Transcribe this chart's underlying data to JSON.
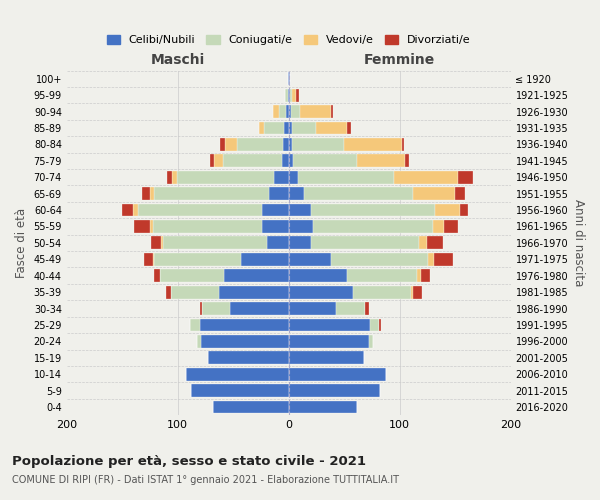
{
  "age_groups": [
    "0-4",
    "5-9",
    "10-14",
    "15-19",
    "20-24",
    "25-29",
    "30-34",
    "35-39",
    "40-44",
    "45-49",
    "50-54",
    "55-59",
    "60-64",
    "65-69",
    "70-74",
    "75-79",
    "80-84",
    "85-89",
    "90-94",
    "95-99",
    "100+"
  ],
  "birth_years": [
    "2016-2020",
    "2011-2015",
    "2006-2010",
    "2001-2005",
    "1996-2000",
    "1991-1995",
    "1986-1990",
    "1981-1985",
    "1976-1980",
    "1971-1975",
    "1966-1970",
    "1961-1965",
    "1956-1960",
    "1951-1955",
    "1946-1950",
    "1941-1945",
    "1936-1940",
    "1931-1935",
    "1926-1930",
    "1921-1925",
    "≤ 1920"
  ],
  "maschi": {
    "celibi": [
      68,
      88,
      93,
      73,
      79,
      80,
      53,
      63,
      58,
      43,
      20,
      24,
      24,
      18,
      13,
      6,
      5,
      4,
      2,
      1,
      1
    ],
    "coniugati": [
      0,
      0,
      0,
      0,
      4,
      9,
      25,
      43,
      58,
      78,
      93,
      98,
      112,
      103,
      88,
      53,
      42,
      18,
      7,
      2,
      0
    ],
    "vedovi": [
      0,
      0,
      0,
      0,
      0,
      0,
      0,
      0,
      0,
      1,
      2,
      3,
      4,
      4,
      4,
      8,
      10,
      5,
      5,
      0,
      0
    ],
    "divorziati": [
      0,
      0,
      0,
      0,
      0,
      0,
      2,
      5,
      5,
      8,
      9,
      14,
      10,
      7,
      5,
      4,
      5,
      0,
      0,
      0,
      0
    ]
  },
  "femmine": {
    "nubili": [
      62,
      82,
      88,
      68,
      72,
      73,
      43,
      58,
      53,
      38,
      20,
      22,
      20,
      14,
      8,
      4,
      3,
      3,
      2,
      1,
      1
    ],
    "coniugate": [
      0,
      0,
      0,
      0,
      4,
      8,
      26,
      52,
      63,
      88,
      97,
      108,
      112,
      98,
      87,
      58,
      47,
      22,
      8,
      2,
      0
    ],
    "vedove": [
      0,
      0,
      0,
      0,
      0,
      0,
      0,
      2,
      3,
      5,
      8,
      10,
      22,
      38,
      58,
      43,
      52,
      28,
      28,
      4,
      0
    ],
    "divorziate": [
      0,
      0,
      0,
      0,
      0,
      2,
      3,
      8,
      8,
      17,
      14,
      13,
      8,
      9,
      13,
      3,
      2,
      3,
      2,
      2,
      0
    ]
  },
  "colors": {
    "celibi": "#4472C4",
    "coniugati": "#c5d9b8",
    "vedovi": "#f5c87a",
    "divorziati": "#c0392b"
  },
  "xlim": 200,
  "title": "Popolazione per età, sesso e stato civile - 2021",
  "subtitle": "COMUNE DI RIPI (FR) - Dati ISTAT 1° gennaio 2021 - Elaborazione TUTTITALIA.IT",
  "ylabel_left": "Fasce di età",
  "ylabel_right": "Anni di nascita",
  "xlabel_maschi": "Maschi",
  "xlabel_femmine": "Femmine",
  "legend_labels": [
    "Celibi/Nubili",
    "Coniugati/e",
    "Vedovi/e",
    "Divorziati/e"
  ],
  "background_color": "#f0f0eb"
}
